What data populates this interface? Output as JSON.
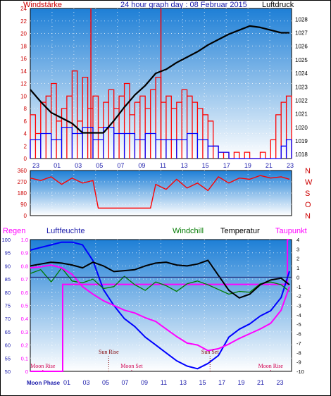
{
  "title": "24 hour graph day : 08 Februar 2015",
  "colors": {
    "red": "#ff0000",
    "blue": "#0000ff",
    "black": "#000000",
    "green": "#007a00",
    "magenta": "#ff00ff",
    "axis_red": "#cc0000",
    "axis_blue": "#1a1aaa",
    "moon_pink": "#d00050",
    "sun_dark": "#800000",
    "plot_top": "#1e7fd6",
    "plot_bottom": "#ffffff"
  },
  "chart_data": [
    {
      "id": "wind_pressure",
      "type": "line",
      "left_label": "Windstärke",
      "right_label": "Luftdruck",
      "left_ticks": [
        "0",
        "2",
        "4",
        "6",
        "8",
        "10",
        "12",
        "14",
        "16",
        "18",
        "20",
        "22",
        "24"
      ],
      "left_range": [
        0,
        24
      ],
      "right_ticks": [
        "1018",
        "1019",
        "1020",
        "1021",
        "1022",
        "1023",
        "1024",
        "1025",
        "1026",
        "1027",
        "1028"
      ],
      "right_range": [
        1017.7,
        1028.8
      ],
      "x_ticks": [
        "23",
        "01",
        "03",
        "05",
        "07",
        "09",
        "11",
        "13",
        "15",
        "17",
        "19",
        "21",
        "23"
      ],
      "x_range_hours": [
        0,
        25
      ],
      "series": [
        {
          "name": "Luftdruck",
          "axis": "right",
          "x": [
            0,
            1,
            2,
            3,
            4,
            5,
            6,
            7,
            8,
            9,
            10,
            11,
            12,
            13,
            14,
            15,
            16,
            17,
            18,
            19,
            20,
            21,
            22,
            23,
            24,
            24.8
          ],
          "y": [
            1022.8,
            1021.9,
            1021.1,
            1020.7,
            1020.3,
            1019.6,
            1019.6,
            1019.6,
            1020.5,
            1021.5,
            1022.4,
            1023.1,
            1024.0,
            1024.3,
            1024.8,
            1025.2,
            1025.6,
            1026.1,
            1026.5,
            1026.9,
            1027.2,
            1027.5,
            1027.4,
            1027.2,
            1027.0,
            1027.0
          ]
        },
        {
          "name": "Windstärke",
          "axis": "left",
          "x": [
            0,
            0.5,
            1,
            1.5,
            2,
            2.5,
            3,
            3.5,
            4,
            4.5,
            5,
            5.5,
            6,
            6.5,
            7,
            7.5,
            8,
            8.5,
            9,
            9.5,
            10,
            10.5,
            11,
            11.5,
            12,
            12.5,
            13,
            13.5,
            14,
            14.5,
            15,
            15.5,
            16,
            16.5,
            17,
            17.5,
            18,
            18.5,
            19,
            19.5,
            20,
            20.5,
            21,
            21.5,
            22,
            22.5,
            23,
            23.5,
            24,
            24.5
          ],
          "y": [
            7,
            4,
            9,
            10,
            12,
            6,
            8,
            10,
            14,
            6,
            13,
            8,
            10,
            5,
            9,
            11,
            8,
            10,
            12,
            7,
            9,
            10,
            8,
            11,
            13,
            9,
            10,
            8,
            9,
            11,
            10,
            9,
            8,
            7,
            6,
            2,
            1,
            1,
            0,
            1,
            0,
            1,
            0,
            0,
            1,
            0,
            3,
            7,
            9,
            10
          ]
        },
        {
          "name": "Windstärke peaks",
          "axis": "left",
          "x": [
            5.8,
            12.5
          ],
          "y": [
            24,
            24
          ]
        },
        {
          "name": "Windböen",
          "axis": "left",
          "x": [
            0,
            1,
            2,
            3,
            4,
            5,
            6,
            7,
            8,
            9,
            10,
            11,
            12,
            13,
            14,
            15,
            16,
            17,
            18,
            19,
            20,
            21,
            22,
            23,
            24,
            24.5
          ],
          "y": [
            3,
            4,
            3,
            5,
            4,
            5,
            3,
            5,
            4,
            4,
            3,
            4,
            3,
            3,
            3,
            4,
            3,
            2,
            1,
            0,
            0,
            0,
            0,
            0,
            2,
            3
          ]
        }
      ]
    },
    {
      "id": "wind_direction",
      "type": "line",
      "left_ticks": [
        "0",
        "90",
        "180",
        "270",
        "360"
      ],
      "left_range": [
        0,
        360
      ],
      "right_labels": [
        "N",
        "W",
        "S",
        "O",
        "N"
      ],
      "x_range_hours": [
        0,
        25
      ],
      "series": [
        {
          "name": "Windrichtung",
          "x": [
            0,
            1,
            2,
            3,
            4,
            5,
            6,
            6.5,
            7,
            8,
            9,
            10,
            11,
            11.5,
            12,
            13,
            14,
            15,
            16,
            17,
            18,
            19,
            20,
            21,
            22,
            23,
            24,
            24.8
          ],
          "y": [
            300,
            280,
            310,
            250,
            300,
            260,
            280,
            60,
            60,
            60,
            60,
            60,
            60,
            60,
            250,
            210,
            290,
            220,
            260,
            200,
            310,
            260,
            300,
            290,
            320,
            300,
            310,
            290
          ]
        }
      ]
    },
    {
      "id": "humidity_temp",
      "type": "line",
      "labels": {
        "regen": "Regen",
        "luftfeuchte": "Luftfeuchte",
        "windchill": "Windchill",
        "temperatur": "Temperatur",
        "taupunkt": "Taupunkt"
      },
      "left_ticks": [
        "50",
        "55",
        "60",
        "65",
        "70",
        "75",
        "80",
        "85",
        "90",
        "95",
        "100"
      ],
      "left_range": [
        50,
        100
      ],
      "rain_ticks": [
        "0",
        "0.1",
        "0.2",
        "0.3",
        "0.4",
        "0.5",
        "0.6",
        "0.7",
        "0.8",
        "0.9",
        "1.0"
      ],
      "rain_range": [
        0,
        1.0
      ],
      "right_ticks": [
        "4",
        "3",
        "2",
        "1",
        "0",
        "-1",
        "-2",
        "-3",
        "-4",
        "-5",
        "-6",
        "-7",
        "-8",
        "-9",
        "-10"
      ],
      "right_range": [
        -10,
        4
      ],
      "x_ticks": [
        "01",
        "03",
        "05",
        "07",
        "09",
        "11",
        "13",
        "15",
        "17",
        "19",
        "21",
        "23"
      ],
      "x_range_hours": [
        0,
        25
      ],
      "series": [
        {
          "name": "Luftfeuchte",
          "axis": "left",
          "x": [
            0,
            1,
            2,
            3,
            4,
            5,
            6,
            7,
            8,
            9,
            10,
            11,
            12,
            13,
            14,
            15,
            16,
            17,
            18,
            19,
            20,
            21,
            22,
            23,
            24,
            24.8
          ],
          "y": [
            96,
            97,
            98,
            99,
            99,
            98,
            92,
            81,
            75,
            70,
            67,
            63,
            60,
            57,
            54,
            52,
            51,
            53,
            56,
            63,
            66,
            68,
            71,
            73,
            78,
            88
          ]
        },
        {
          "name": "Regen",
          "axis": "rain",
          "x": [
            0,
            3,
            3.1,
            24.5,
            24.6,
            24.8
          ],
          "y": [
            0,
            0,
            0.66,
            0.66,
            1.0,
            1.0
          ]
        },
        {
          "name": "Temperatur",
          "axis": "right",
          "x": [
            0,
            1,
            2,
            3,
            4,
            5,
            6,
            7,
            8,
            9,
            10,
            11,
            12,
            13,
            14,
            15,
            16,
            17,
            18,
            19,
            20,
            21,
            22,
            23,
            24,
            24.8
          ],
          "y": [
            1.2,
            1.4,
            1.6,
            1.5,
            1.3,
            1.0,
            1.6,
            1.2,
            0.6,
            0.7,
            0.8,
            1.2,
            1.5,
            1.6,
            1.3,
            1.2,
            1.4,
            1.8,
            0.2,
            -1.4,
            -2.2,
            -1.8,
            -0.8,
            -0.3,
            -0.1,
            -0.8
          ]
        },
        {
          "name": "Windchill",
          "axis": "right",
          "x": [
            0,
            1,
            2,
            3,
            4,
            5,
            6,
            7,
            8,
            9,
            10,
            11,
            12,
            13,
            14,
            15,
            16,
            17,
            18,
            19,
            20,
            21,
            22,
            23,
            24,
            24.8
          ],
          "y": [
            0.4,
            0.8,
            -0.5,
            1.0,
            -0.4,
            -0.6,
            -0.2,
            -1.2,
            -1.0,
            0.1,
            -0.8,
            -1.4,
            -0.5,
            -0.9,
            -1.5,
            -0.7,
            -0.4,
            -0.8,
            -1.3,
            -1.8,
            -1.5,
            -1.6,
            -0.7,
            -0.5,
            -0.8,
            -1.5
          ]
        },
        {
          "name": "Taupunkt",
          "axis": "right",
          "x": [
            0,
            1,
            2,
            3,
            4,
            5,
            6,
            7,
            8,
            9,
            10,
            11,
            12,
            13,
            14,
            15,
            16,
            17,
            18,
            19,
            20,
            21,
            22,
            23,
            24,
            24.8
          ],
          "y": [
            1.0,
            1.1,
            1.3,
            1.0,
            0.3,
            -1.0,
            -1.8,
            -2.5,
            -3.0,
            -3.5,
            -3.8,
            -4.3,
            -4.7,
            -5.5,
            -6.3,
            -7.0,
            -7.2,
            -7.8,
            -7.6,
            -7.1,
            -6.5,
            -6.0,
            -5.5,
            -4.9,
            -3.5,
            -1.0
          ]
        }
      ],
      "annotations": [
        {
          "text": "Moon Rise",
          "x": 1.2,
          "level": "low"
        },
        {
          "text": "Sun Rise",
          "x": 7.5,
          "level": "high"
        },
        {
          "text": "Moon Set",
          "x": 9.7,
          "level": "low"
        },
        {
          "text": "Sun Set",
          "x": 17.2,
          "level": "high"
        },
        {
          "text": "Moon Rise",
          "x": 23.0,
          "level": "low"
        }
      ],
      "moon_phase_label": "Moon Phase"
    }
  ]
}
